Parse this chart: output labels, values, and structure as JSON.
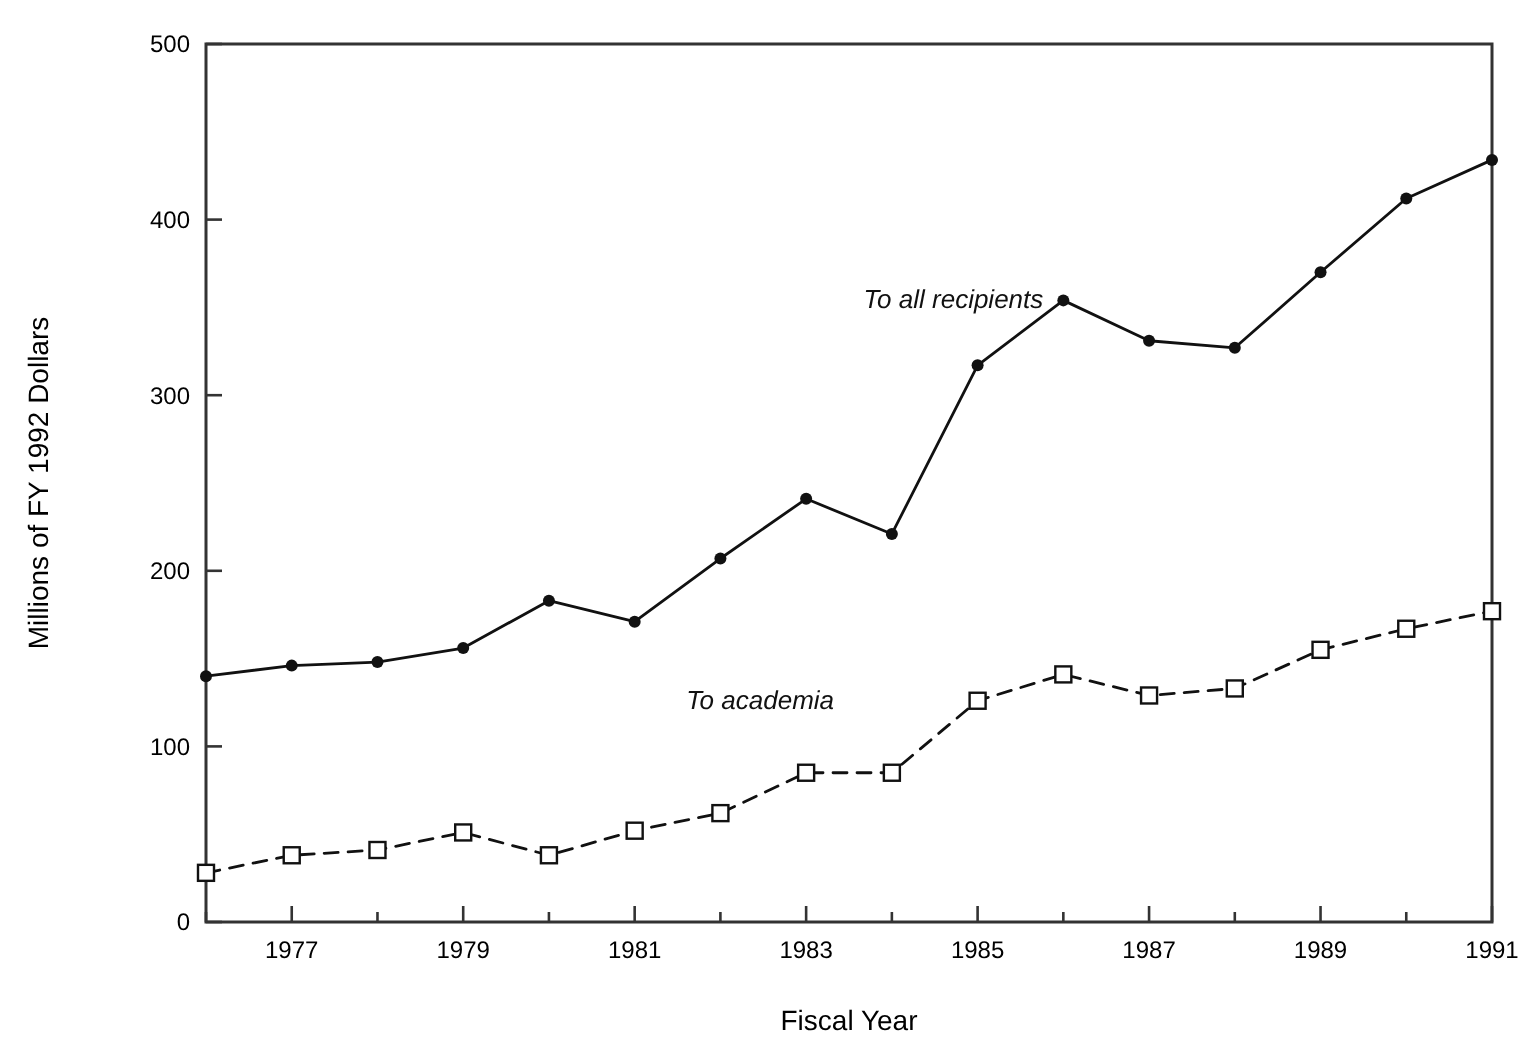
{
  "chart_data": {
    "type": "line",
    "xlabel": "Fiscal Year",
    "ylabel": "Millions of FY 1992 Dollars",
    "x": [
      1976,
      1977,
      1978,
      1979,
      1980,
      1981,
      1982,
      1983,
      1984,
      1985,
      1986,
      1987,
      1988,
      1989,
      1990,
      1991
    ],
    "xlim": [
      1976,
      1991
    ],
    "xticks": [
      {
        "value": 1976,
        "label": null
      },
      1977,
      {
        "value": 1978,
        "label": null
      },
      1979,
      {
        "value": 1980,
        "label": null
      },
      1981,
      {
        "value": 1982,
        "label": null
      },
      1983,
      {
        "value": 1984,
        "label": null
      },
      1985,
      {
        "value": 1986,
        "label": null
      },
      1987,
      {
        "value": 1988,
        "label": null
      },
      1989,
      {
        "value": 1990,
        "label": null
      },
      1991
    ],
    "ylim": [
      0,
      500
    ],
    "yticks": [
      0,
      100,
      200,
      300,
      400,
      500
    ],
    "grid": false,
    "legend": false,
    "series": [
      {
        "name": "To all recipients",
        "color": "#111111",
        "marker": "circle",
        "line_style": "solid",
        "values": [
          140,
          146,
          148,
          156,
          183,
          171,
          207,
          241,
          221,
          317,
          354,
          331,
          327,
          370,
          412,
          434
        ]
      },
      {
        "name": "To academia",
        "color": "#111111",
        "marker": "square",
        "line_style": "dashed",
        "values": [
          28,
          38,
          41,
          51,
          38,
          52,
          62,
          85,
          85,
          126,
          141,
          129,
          133,
          155,
          167,
          177
        ]
      }
    ]
  }
}
